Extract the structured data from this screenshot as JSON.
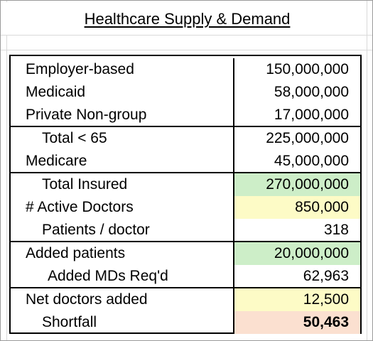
{
  "title": "Healthcare Supply & Demand",
  "colors": {
    "green": "#cdeec8",
    "yellow": "#fdfbc6",
    "peach": "#fbe0d0"
  },
  "rows": [
    {
      "label": "Employer-based",
      "value": "150,000,000"
    },
    {
      "label": "Medicaid",
      "value": "58,000,000"
    },
    {
      "label": "Private Non-group",
      "value": "17,000,000"
    },
    {
      "label": "Total < 65",
      "value": "225,000,000"
    },
    {
      "label": "Medicare",
      "value": "45,000,000"
    },
    {
      "label": "Total Insured",
      "value": "270,000,000"
    },
    {
      "label": "# Active Doctors",
      "value": "850,000"
    },
    {
      "label": "Patients / doctor",
      "value": "318"
    },
    {
      "label": "Added patients",
      "value": "20,000,000"
    },
    {
      "label": "Added MDs Req'd",
      "value": "62,963"
    },
    {
      "label": "Net doctors added",
      "value": "12,500"
    },
    {
      "label": "Shortfall",
      "value": "50,463"
    }
  ]
}
